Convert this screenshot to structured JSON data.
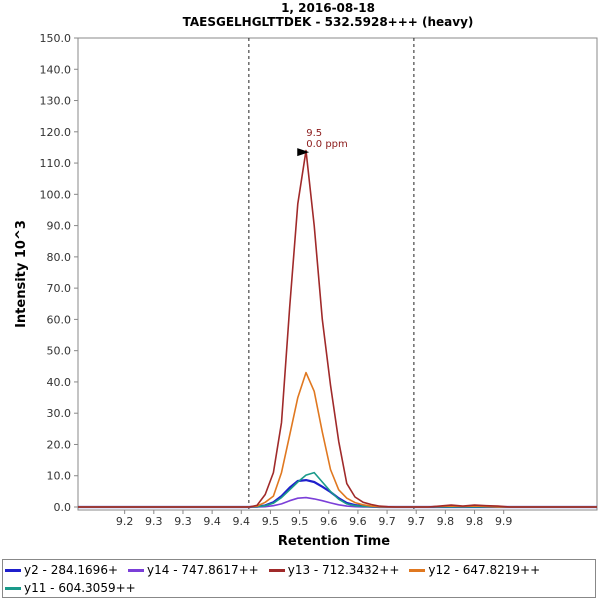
{
  "chart_data": {
    "type": "line",
    "title": "1, 2016-08-18",
    "subtitle": "TAESGELHGLTTDEK - 532.5928+++ (heavy)",
    "xlabel": "Retention Time",
    "ylabel": "Intensity 10^3",
    "xlim": [
      9.12,
      10.01
    ],
    "ylim": [
      0,
      150
    ],
    "xticks": [
      "9.2",
      "9.3",
      "9.3",
      "9.4",
      "9.4",
      "9.5",
      "9.5",
      "9.6",
      "9.6",
      "9.7",
      "9.7",
      "9.8",
      "9.8",
      "9.9"
    ],
    "xtick_values": [
      9.2,
      9.25,
      9.3,
      9.35,
      9.4,
      9.45,
      9.5,
      9.55,
      9.6,
      9.65,
      9.7,
      9.75,
      9.8,
      9.85
    ],
    "yticks": [
      "0.0",
      "10.0",
      "20.0",
      "30.0",
      "40.0",
      "50.0",
      "60.0",
      "70.0",
      "80.0",
      "90.0",
      "100.0",
      "110.0",
      "120.0",
      "130.0",
      "140.0",
      "150.0"
    ],
    "ytick_values": [
      0,
      10,
      20,
      30,
      40,
      50,
      60,
      70,
      80,
      90,
      100,
      110,
      120,
      130,
      140,
      150
    ],
    "boundaries": [
      9.413,
      9.696
    ],
    "grid": false,
    "legend_position": "bottom",
    "annotation": {
      "x": 9.52,
      "y": 113.5,
      "lines": [
        "9.5",
        "0.0 ppm"
      ],
      "color": "#8b1a1a"
    },
    "x": [
      9.12,
      9.4,
      9.413,
      9.427,
      9.441,
      9.455,
      9.469,
      9.483,
      9.497,
      9.511,
      9.525,
      9.539,
      9.553,
      9.567,
      9.581,
      9.595,
      9.609,
      9.623,
      9.637,
      9.651,
      9.665,
      9.68,
      9.7,
      9.72,
      9.74,
      9.76,
      9.78,
      9.8,
      9.82,
      9.84,
      9.86,
      9.88,
      10.01
    ],
    "series": [
      {
        "name": "y2 - 284.1696+",
        "color": "#1f1fcc",
        "values": [
          0,
          0,
          0,
          0.1,
          0.5,
          1.5,
          3.5,
          6.2,
          8.3,
          8.6,
          8.0,
          6.5,
          4.8,
          2.8,
          1.3,
          0.6,
          0.3,
          0.1,
          0,
          0,
          0,
          0,
          0,
          0,
          0,
          0,
          0,
          0,
          0,
          0,
          0,
          0,
          0
        ]
      },
      {
        "name": "y14 - 747.8617++",
        "color": "#7b3fd8",
        "values": [
          0,
          0,
          0,
          0,
          0.1,
          0.4,
          1.0,
          2.0,
          2.8,
          3.0,
          2.6,
          2.0,
          1.3,
          0.7,
          0.3,
          0.1,
          0,
          0,
          0,
          0,
          0,
          0,
          0,
          0,
          0.2,
          0,
          0.1,
          0.2,
          0,
          0.1,
          0,
          0,
          0
        ]
      },
      {
        "name": "y13 - 712.3432++",
        "color": "#a02a2a",
        "values": [
          0,
          0,
          0,
          0.5,
          4.0,
          11.0,
          27.0,
          64.0,
          97.0,
          114.0,
          90.0,
          60.0,
          39.0,
          21.0,
          7.5,
          3.2,
          1.5,
          0.8,
          0.3,
          0.1,
          0,
          0,
          0,
          0,
          0.3,
          0.6,
          0.3,
          0.6,
          0.4,
          0.3,
          0,
          0,
          0
        ]
      },
      {
        "name": "y12 - 647.8219++",
        "color": "#e07820",
        "values": [
          0,
          0,
          0,
          0.3,
          1.5,
          3.5,
          11.0,
          23.0,
          35.0,
          43.0,
          37.0,
          24.0,
          12.0,
          5.5,
          2.8,
          1.4,
          0.7,
          0.3,
          0.1,
          0,
          0,
          0,
          0,
          0,
          0.2,
          0.3,
          0.2,
          0.3,
          0.2,
          0,
          0,
          0,
          0
        ]
      },
      {
        "name": "y11 - 604.3059++",
        "color": "#1a9a8a",
        "values": [
          0,
          0,
          0,
          0.1,
          0.4,
          1.2,
          3.0,
          5.5,
          8.0,
          10.2,
          11.0,
          8.0,
          5.0,
          2.5,
          1.0,
          0.4,
          0.2,
          0.1,
          0,
          0,
          0,
          0,
          0,
          0,
          0,
          0,
          0,
          0,
          0,
          0,
          0,
          0,
          0
        ]
      }
    ]
  }
}
